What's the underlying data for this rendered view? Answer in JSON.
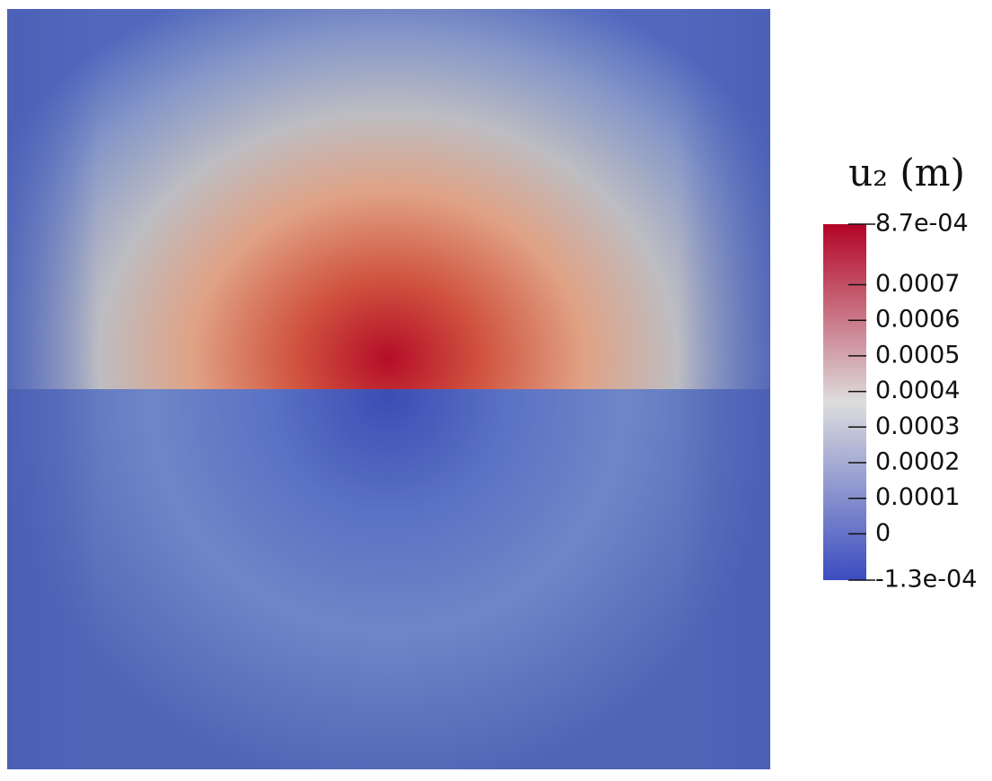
{
  "chart_data": {
    "type": "colorbar",
    "title": "u₂ (m)",
    "clim": [
      -0.00013,
      0.00087
    ],
    "ticks": [
      {
        "value": 0.00087,
        "label": "8.7e-04"
      },
      0.0007,
      0.0006,
      0.0005,
      0.0004,
      0.0003,
      0.0002,
      0.0001,
      0,
      {
        "value": -0.00013,
        "label": "-1.3e-04"
      }
    ],
    "colors": [
      "#3b4cc0",
      "#dddddd",
      "#b40426"
    ]
  }
}
